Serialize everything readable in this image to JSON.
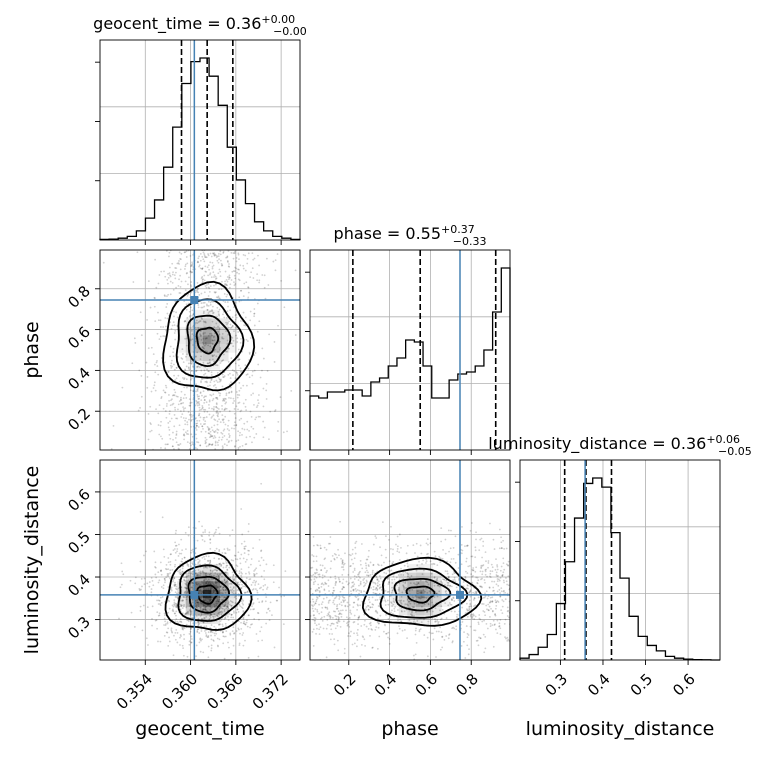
{
  "chart_data": {
    "type": "corner",
    "parameters": [
      "geocent_time",
      "phase",
      "luminosity_distance"
    ],
    "truth_color": "#4682b4",
    "truths": {
      "geocent_time": 0.3605,
      "phase": 0.745,
      "luminosity_distance": 0.358
    },
    "titles": [
      {
        "param": "geocent_time",
        "text": "geocent_time = 0.36",
        "sup": "+0.00",
        "sub": "−0.00"
      },
      {
        "param": "phase",
        "text": "phase = 0.55",
        "sup": "+0.37",
        "sub": "−0.33"
      },
      {
        "param": "luminosity_distance",
        "text": "luminosity_distance = 0.36",
        "sup": "+0.06",
        "sub": "−0.05"
      }
    ],
    "axis_labels": {
      "geocent_time": "geocent_time",
      "phase": "phase",
      "luminosity_distance": "luminosity_distance"
    },
    "ranges": {
      "geocent_time": [
        0.348,
        0.3745
      ],
      "phase": [
        0.01,
        0.99
      ],
      "luminosity_distance": [
        0.205,
        0.675
      ]
    },
    "ticks": {
      "geocent_time": [
        "0.354",
        "0.360",
        "0.366",
        "0.372"
      ],
      "phase": [
        "0.2",
        "0.4",
        "0.6",
        "0.8"
      ],
      "luminosity_distance": [
        "0.3",
        "0.4",
        "0.5",
        "0.6"
      ]
    },
    "quantiles": {
      "geocent_time": [
        0.3588,
        0.3622,
        0.3656
      ],
      "phase": [
        0.22,
        0.55,
        0.92
      ],
      "luminosity_distance": [
        0.31,
        0.36,
        0.42
      ]
    },
    "histograms": {
      "geocent_time": [
        0.003,
        0.005,
        0.01,
        0.02,
        0.05,
        0.12,
        0.22,
        0.4,
        0.62,
        0.86,
        0.98,
        1.0,
        0.9,
        0.74,
        0.51,
        0.33,
        0.2,
        0.1,
        0.05,
        0.02,
        0.01,
        0.003
      ],
      "phase": [
        0.27,
        0.26,
        0.29,
        0.29,
        0.3,
        0.3,
        0.27,
        0.34,
        0.36,
        0.42,
        0.46,
        0.55,
        0.54,
        0.42,
        0.26,
        0.26,
        0.35,
        0.38,
        0.39,
        0.42,
        0.5,
        0.69,
        0.91
      ],
      "luminosity_distance": [
        0.01,
        0.03,
        0.07,
        0.14,
        0.31,
        0.54,
        0.78,
        0.97,
        1.0,
        0.95,
        0.7,
        0.45,
        0.24,
        0.13,
        0.08,
        0.05,
        0.02,
        0.01,
        0.005,
        0.002,
        0.001,
        0.0
      ]
    }
  }
}
